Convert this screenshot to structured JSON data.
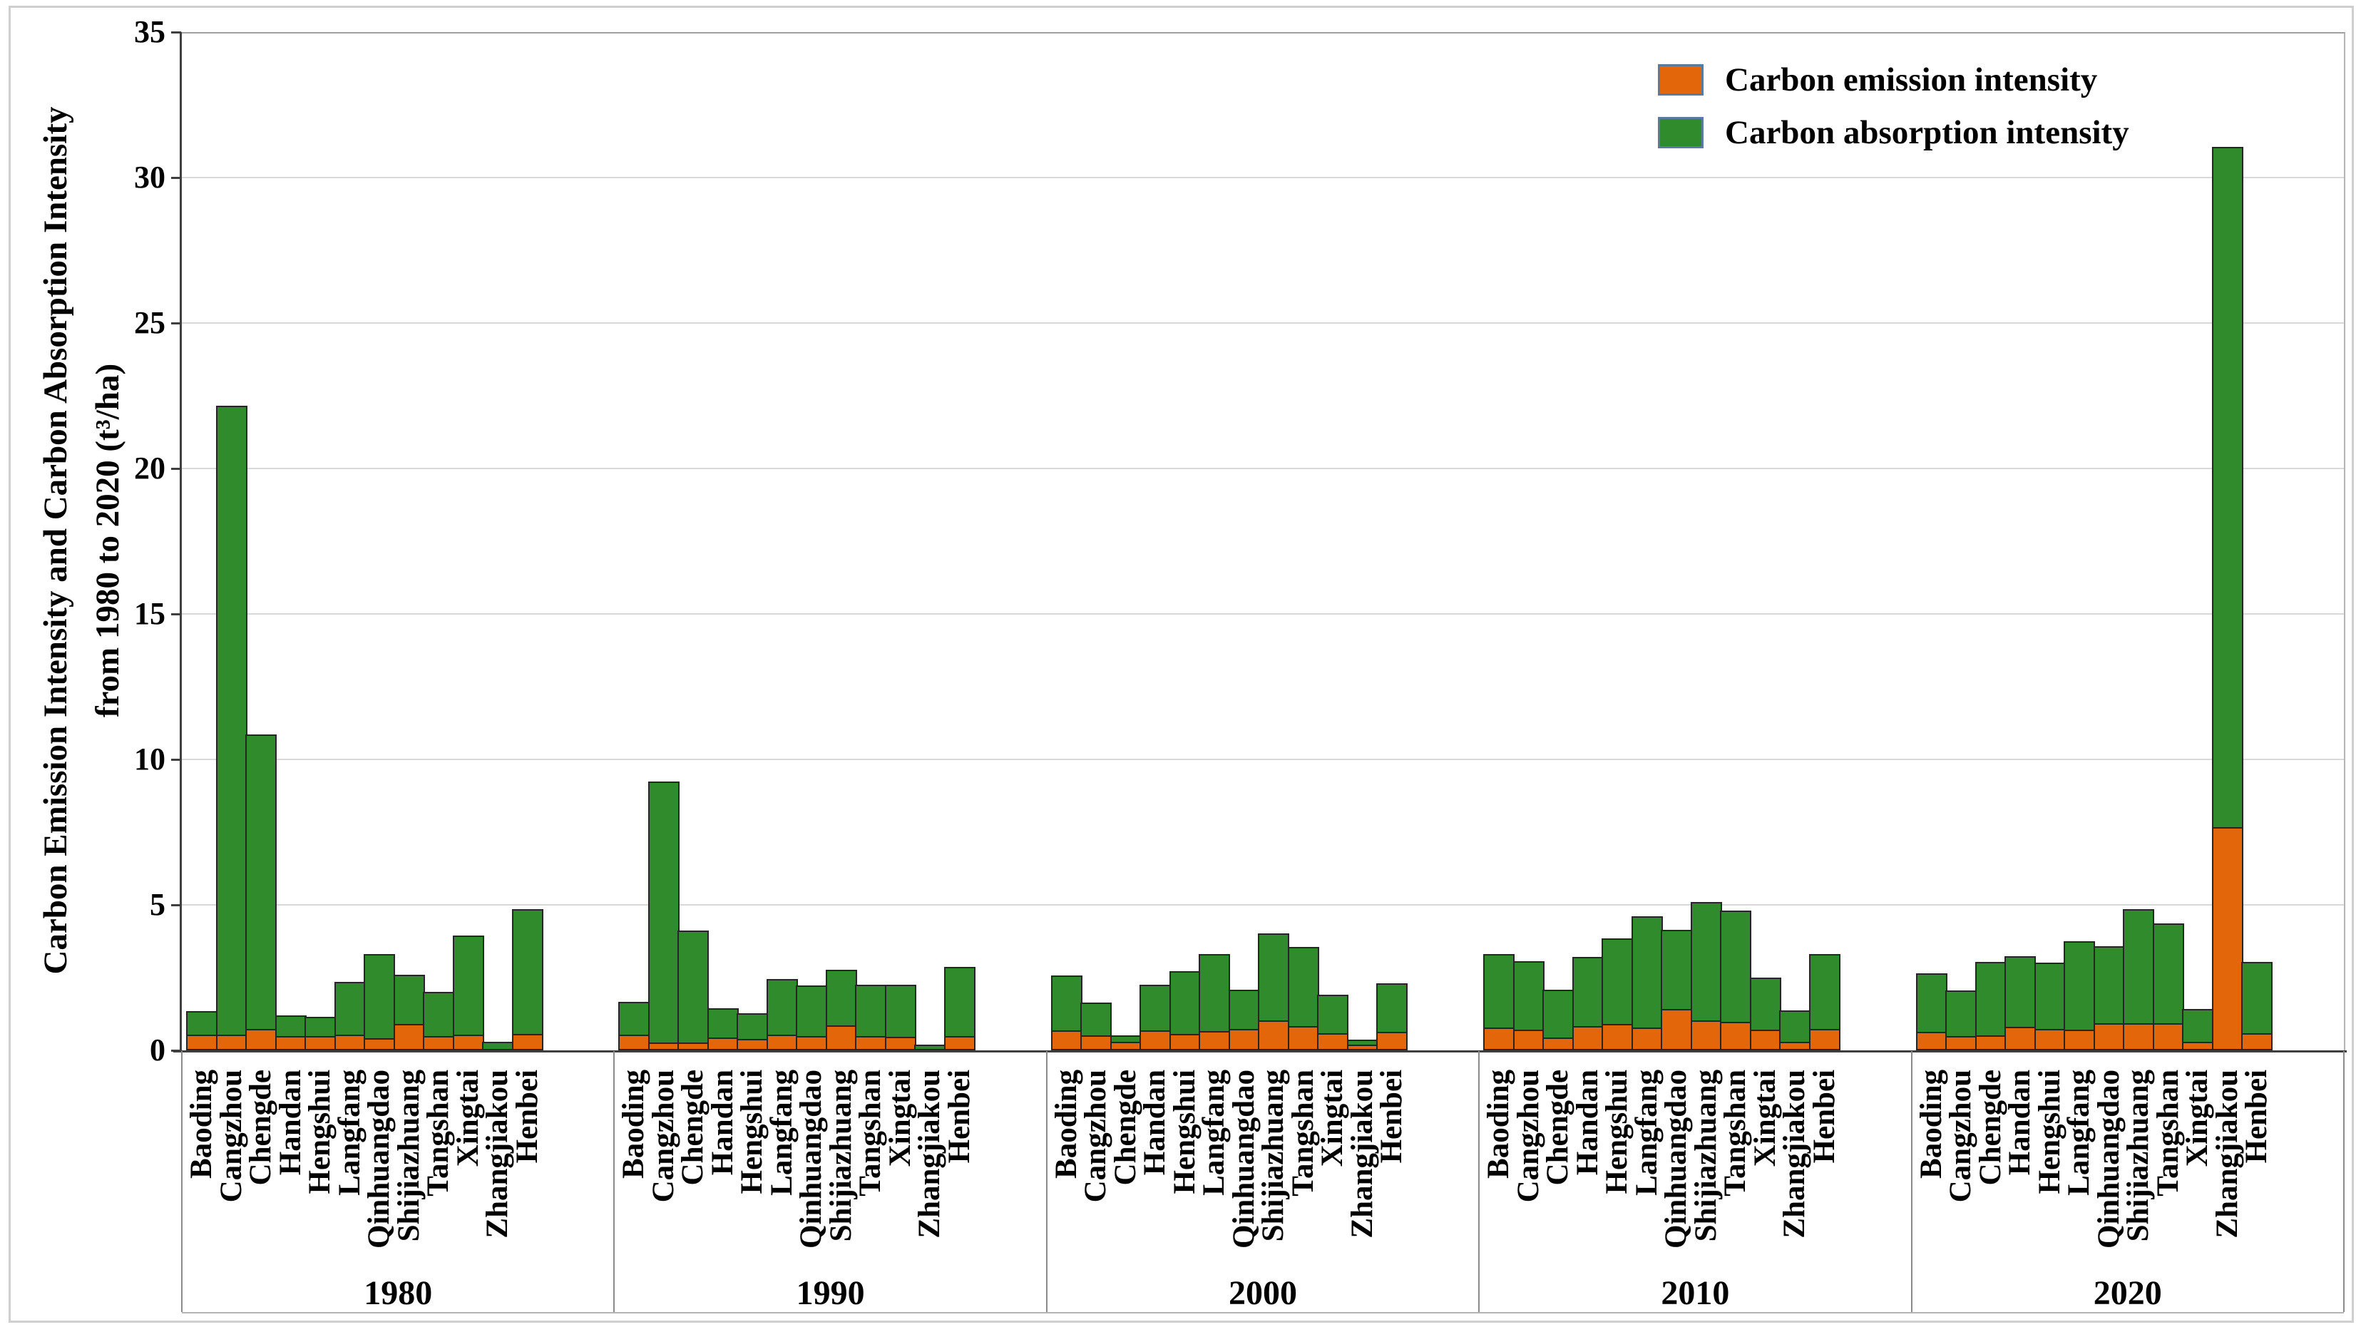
{
  "figure": {
    "background": "#ffffff",
    "frame_color": "#cfcfcf"
  },
  "chart_data": {
    "type": "bar",
    "stacked": true,
    "title": "",
    "ylabel_line1": "Carbon Emission Intensity and Carbon Absorption Intensity",
    "ylabel_line2": "from 1980 to 2020  (t³/ha)",
    "ylim": [
      0,
      35
    ],
    "yticks": [
      0,
      5,
      10,
      15,
      20,
      25,
      30,
      35
    ],
    "grid": "horizontal gridlines every 5 units, light gray",
    "legend_position": "top-right inside plot",
    "groups": [
      "1980",
      "1990",
      "2000",
      "2010",
      "2020"
    ],
    "categories": [
      "Baoding",
      "Cangzhou",
      "Chengde",
      "Handan",
      "Hengshui",
      "Langfang",
      "Qinhuangdao",
      "Shijiazhuang",
      "Tangshan",
      "Xingtai",
      "Zhangjiakou",
      "Henbei"
    ],
    "series": [
      {
        "name": "Carbon emission intensity",
        "color": "#E4660B",
        "values": {
          "1980": [
            0.55,
            0.55,
            0.73,
            0.5,
            0.48,
            0.53,
            0.42,
            0.9,
            0.48,
            0.55,
            0.05,
            0.57
          ],
          "1990": [
            0.53,
            0.26,
            0.28,
            0.44,
            0.4,
            0.53,
            0.49,
            0.85,
            0.49,
            0.47,
            0.06,
            0.5
          ],
          "2000": [
            0.68,
            0.52,
            0.3,
            0.68,
            0.57,
            0.66,
            0.74,
            1.02,
            0.83,
            0.6,
            0.19,
            0.64
          ],
          "2010": [
            0.78,
            0.72,
            0.45,
            0.84,
            0.9,
            0.78,
            1.41,
            1.04,
            0.98,
            0.7,
            0.29,
            0.74
          ],
          "2020": [
            0.64,
            0.49,
            0.52,
            0.8,
            0.74,
            0.7,
            0.92,
            0.94,
            0.92,
            0.3,
            7.67,
            0.58
          ]
        }
      },
      {
        "name": "Carbon absorption intensity",
        "color": "#2F8B2C",
        "values": {
          "1980": [
            0.85,
            21.65,
            10.17,
            0.75,
            0.72,
            1.87,
            2.93,
            1.75,
            1.57,
            3.45,
            0.3,
            4.33
          ],
          "1990": [
            1.19,
            9.04,
            3.89,
            1.06,
            0.93,
            1.96,
            1.78,
            1.96,
            1.82,
            1.84,
            0.19,
            2.42
          ],
          "2000": [
            1.94,
            1.17,
            0.26,
            1.63,
            2.21,
            2.69,
            1.4,
            3.06,
            2.78,
            1.35,
            0.22,
            1.71
          ],
          "2010": [
            2.57,
            2.39,
            1.69,
            2.43,
            2.99,
            3.87,
            2.79,
            4.11,
            3.87,
            1.86,
            1.12,
            2.63
          ],
          "2020": [
            2.06,
            1.62,
            2.56,
            2.48,
            2.33,
            3.1,
            2.7,
            3.95,
            3.48,
            1.16,
            23.43,
            2.51
          ]
        }
      }
    ],
    "bar_outline_color": "#262626",
    "gridline_color": "#d9d9d9",
    "axis_color": "#3f3f3f"
  }
}
